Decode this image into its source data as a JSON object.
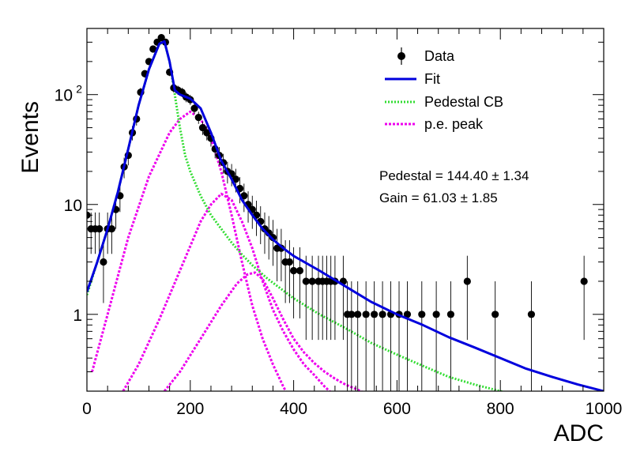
{
  "chart_data": {
    "type": "scatter",
    "xlabel": "ADC",
    "ylabel": "Events",
    "xlim": [
      0,
      1000
    ],
    "ylim": [
      0.2,
      400
    ],
    "yscale": "log",
    "x_ticks": [
      {
        "value": 0,
        "label": "0"
      },
      {
        "value": 200,
        "label": "200"
      },
      {
        "value": 400,
        "label": "400"
      },
      {
        "value": 600,
        "label": "600"
      },
      {
        "value": 800,
        "label": "800"
      },
      {
        "value": 1000,
        "label": "1000"
      }
    ],
    "y_ticks": [
      {
        "value": 1,
        "label": "1",
        "sup": ""
      },
      {
        "value": 10,
        "label": "10",
        "sup": ""
      },
      {
        "value": 100,
        "label": "10",
        "sup": "2"
      }
    ],
    "legend": {
      "placement": "top-right",
      "entries": [
        {
          "key": "data",
          "label": "Data"
        },
        {
          "key": "fit",
          "label": "Fit"
        },
        {
          "key": "ped",
          "label": "Pedestal CB"
        },
        {
          "key": "pe",
          "label": "p.e. peak"
        }
      ]
    },
    "stats": [
      {
        "name": "Pedestal",
        "value": "144.40",
        "error": "1.34"
      },
      {
        "name": "Gain",
        "value": "61.03",
        "error": "1.85"
      }
    ],
    "colors": {
      "data": "#000000",
      "fit": "#0000dd",
      "pedestal": "#33dd33",
      "pe": "#ee00ee"
    },
    "series": [
      {
        "name": "Data",
        "style": "points",
        "x": [
          0,
          8,
          16,
          24,
          32,
          40,
          48,
          56,
          64,
          72,
          80,
          88,
          96,
          104,
          112,
          120,
          128,
          136,
          144,
          152,
          160,
          168,
          176,
          184,
          192,
          200,
          208,
          216,
          224,
          232,
          240,
          248,
          256,
          264,
          272,
          280,
          288,
          296,
          304,
          312,
          320,
          328,
          336,
          344,
          352,
          360,
          368,
          376,
          384,
          392,
          400,
          412,
          424,
          436,
          448,
          456,
          464,
          472,
          480,
          496,
          504,
          512,
          524,
          540,
          556,
          572,
          588,
          604,
          620,
          648,
          676,
          704,
          736,
          790,
          860,
          962
        ],
        "y": [
          8,
          6,
          6,
          6,
          3,
          6,
          6,
          9,
          12,
          22,
          28,
          45,
          60,
          105,
          155,
          200,
          260,
          300,
          330,
          300,
          160,
          115,
          110,
          105,
          95,
          90,
          75,
          62,
          50,
          45,
          40,
          32,
          28,
          24,
          20,
          19,
          17,
          14,
          12,
          10,
          9,
          8,
          7,
          6,
          5.5,
          5,
          4,
          4,
          3,
          3,
          2.5,
          2.5,
          2,
          2,
          2,
          2,
          2,
          2,
          2,
          2,
          1,
          1,
          1,
          1,
          1,
          1,
          1,
          1,
          1,
          1,
          1,
          1,
          2,
          1,
          1,
          2
        ]
      },
      {
        "name": "Fit",
        "style": "line",
        "x": [
          0,
          20,
          40,
          60,
          80,
          100,
          120,
          140,
          150,
          160,
          170,
          180,
          200,
          220,
          240,
          260,
          280,
          300,
          320,
          340,
          360,
          380,
          400,
          450,
          500,
          550,
          600,
          650,
          700,
          750,
          800,
          850,
          900,
          950,
          1000
        ],
        "y": [
          1.6,
          3,
          6,
          13,
          32,
          80,
          170,
          290,
          305,
          200,
          110,
          100,
          92,
          75,
          45,
          25,
          17,
          11,
          8,
          6,
          4.8,
          4,
          3.4,
          2.5,
          1.8,
          1.3,
          1,
          0.8,
          0.62,
          0.5,
          0.4,
          0.32,
          0.27,
          0.23,
          0.2
        ]
      },
      {
        "name": "Pedestal CB",
        "style": "dotted",
        "x": [
          0,
          20,
          40,
          60,
          80,
          100,
          120,
          140,
          150,
          160,
          170,
          180,
          190,
          200,
          220,
          240,
          260,
          280,
          300,
          320,
          350,
          400,
          450,
          500,
          550,
          600,
          650,
          700,
          750,
          800,
          850
        ],
        "y": [
          1.5,
          3,
          6,
          13,
          32,
          80,
          170,
          290,
          300,
          200,
          100,
          50,
          28,
          20,
          12,
          8,
          6,
          4.5,
          3.5,
          2.8,
          2.1,
          1.4,
          1,
          0.75,
          0.55,
          0.43,
          0.34,
          0.27,
          0.23,
          0.2,
          0.18
        ]
      },
      {
        "name": "p.e. peak 1",
        "style": "dotted",
        "x": [
          10,
          40,
          80,
          120,
          160,
          180,
          200,
          220,
          240,
          260,
          280,
          300,
          320,
          340,
          360,
          380,
          390
        ],
        "y": [
          0.3,
          1,
          5,
          18,
          45,
          60,
          70,
          60,
          40,
          20,
          8,
          3,
          1.2,
          0.6,
          0.35,
          0.22,
          0.18
        ]
      },
      {
        "name": "p.e. peak 2",
        "style": "dotted",
        "x": [
          70,
          100,
          140,
          180,
          220,
          240,
          260,
          280,
          300,
          320,
          340,
          360,
          380,
          400,
          420,
          440,
          460,
          480
        ],
        "y": [
          0.2,
          0.35,
          0.9,
          2.5,
          7,
          10,
          12.5,
          11,
          7,
          4,
          2,
          1.1,
          0.7,
          0.48,
          0.35,
          0.28,
          0.22,
          0.18
        ]
      },
      {
        "name": "p.e. peak 3",
        "style": "dotted",
        "x": [
          150,
          180,
          220,
          260,
          290,
          310,
          325,
          340,
          360,
          380,
          400,
          420,
          440,
          460,
          480,
          500,
          520,
          540
        ],
        "y": [
          0.2,
          0.3,
          0.6,
          1.2,
          1.9,
          2.3,
          2.4,
          2.1,
          1.4,
          0.9,
          0.6,
          0.45,
          0.36,
          0.3,
          0.26,
          0.23,
          0.21,
          0.19
        ]
      }
    ]
  }
}
